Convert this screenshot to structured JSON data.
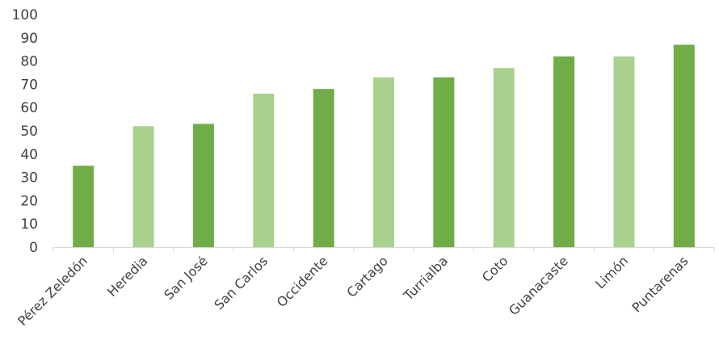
{
  "chart_data": {
    "type": "bar",
    "title": "",
    "xlabel": "",
    "ylabel": "",
    "ylim": [
      0,
      100
    ],
    "yticks": [
      0,
      10,
      20,
      30,
      40,
      50,
      60,
      70,
      80,
      90,
      100
    ],
    "grid": false,
    "legend": "none",
    "categories": [
      "Pérez Zeledón",
      "Heredia",
      "San José",
      "San Carlos",
      "Occidente",
      "Cartago",
      "Turrialba",
      "Coto",
      "Guanacaste",
      "Limón",
      "Puntarenas"
    ],
    "values": [
      35,
      52,
      53,
      66,
      68,
      73,
      73,
      77,
      82,
      82,
      87
    ],
    "bar_colors": [
      "#70ad47",
      "#a9d18e",
      "#70ad47",
      "#a9d18e",
      "#70ad47",
      "#a9d18e",
      "#70ad47",
      "#a9d18e",
      "#70ad47",
      "#a9d18e",
      "#70ad47"
    ],
    "axis_color": "#d9d9d9",
    "text_color": "#404040"
  }
}
